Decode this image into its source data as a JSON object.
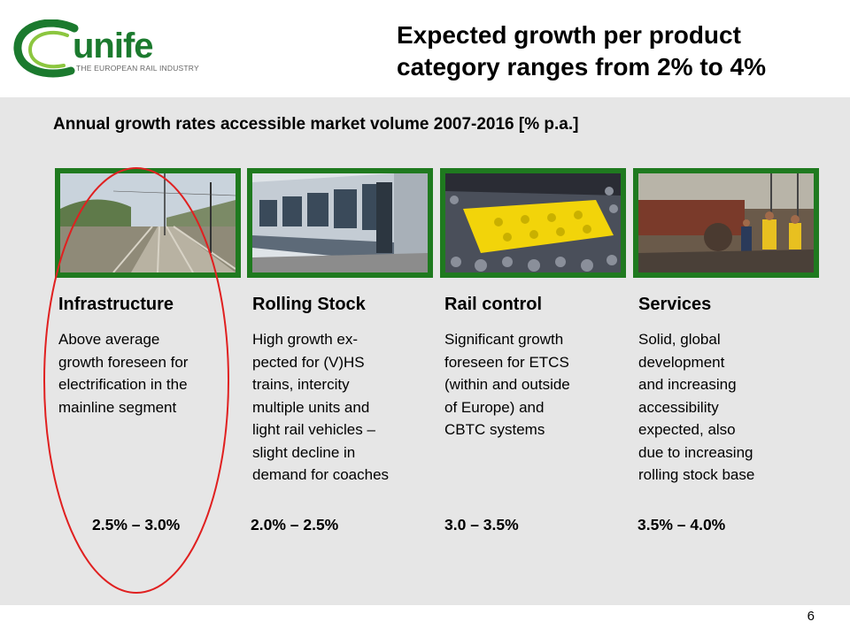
{
  "logo": {
    "word": "unife",
    "subline": "THE EUROPEAN RAIL INDUSTRY",
    "ring_color": "#1b7a2e",
    "ring_light": "#8cc63f"
  },
  "slide": {
    "title_line1": "Expected growth per product",
    "title_line2": "category ranges from 2% to 4%",
    "subtitle": "Annual growth rates accessible market volume 2007-2016 [% p.a.]",
    "page_number": "6"
  },
  "categories": [
    {
      "title": "Infrastructure",
      "desc_lines": [
        "Above average",
        "growth foreseen for",
        "electrification in the",
        "mainline segment"
      ],
      "rate": "2.5% – 3.0%",
      "photo": "infrastructure-track-photo"
    },
    {
      "title": "Rolling Stock",
      "desc_lines": [
        "High growth ex-",
        "pected for (V)HS",
        "trains, intercity",
        "multiple units and",
        "light rail vehicles –",
        "slight decline in",
        "demand for coaches"
      ],
      "rate": "2.0% – 2.5%",
      "photo": "rolling-stock-train-photo"
    },
    {
      "title": "Rail control",
      "desc_lines": [
        "Significant growth",
        "foreseen for ETCS",
        "(within and outside",
        "of Europe) and",
        "CBTC systems"
      ],
      "rate": "3.0 – 3.5%",
      "photo": "rail-control-balise-photo"
    },
    {
      "title": "Services",
      "desc_lines": [
        "Solid, global",
        "development",
        "and increasing",
        "accessibility",
        "expected, also",
        "due to increasing",
        "rolling stock base"
      ],
      "rate": "3.5% – 4.0%",
      "photo": "services-workers-photo"
    }
  ],
  "colors": {
    "photo_frame": "#1f7a1f",
    "highlight": "#e02020",
    "panel_bg": "#e6e6e6"
  }
}
